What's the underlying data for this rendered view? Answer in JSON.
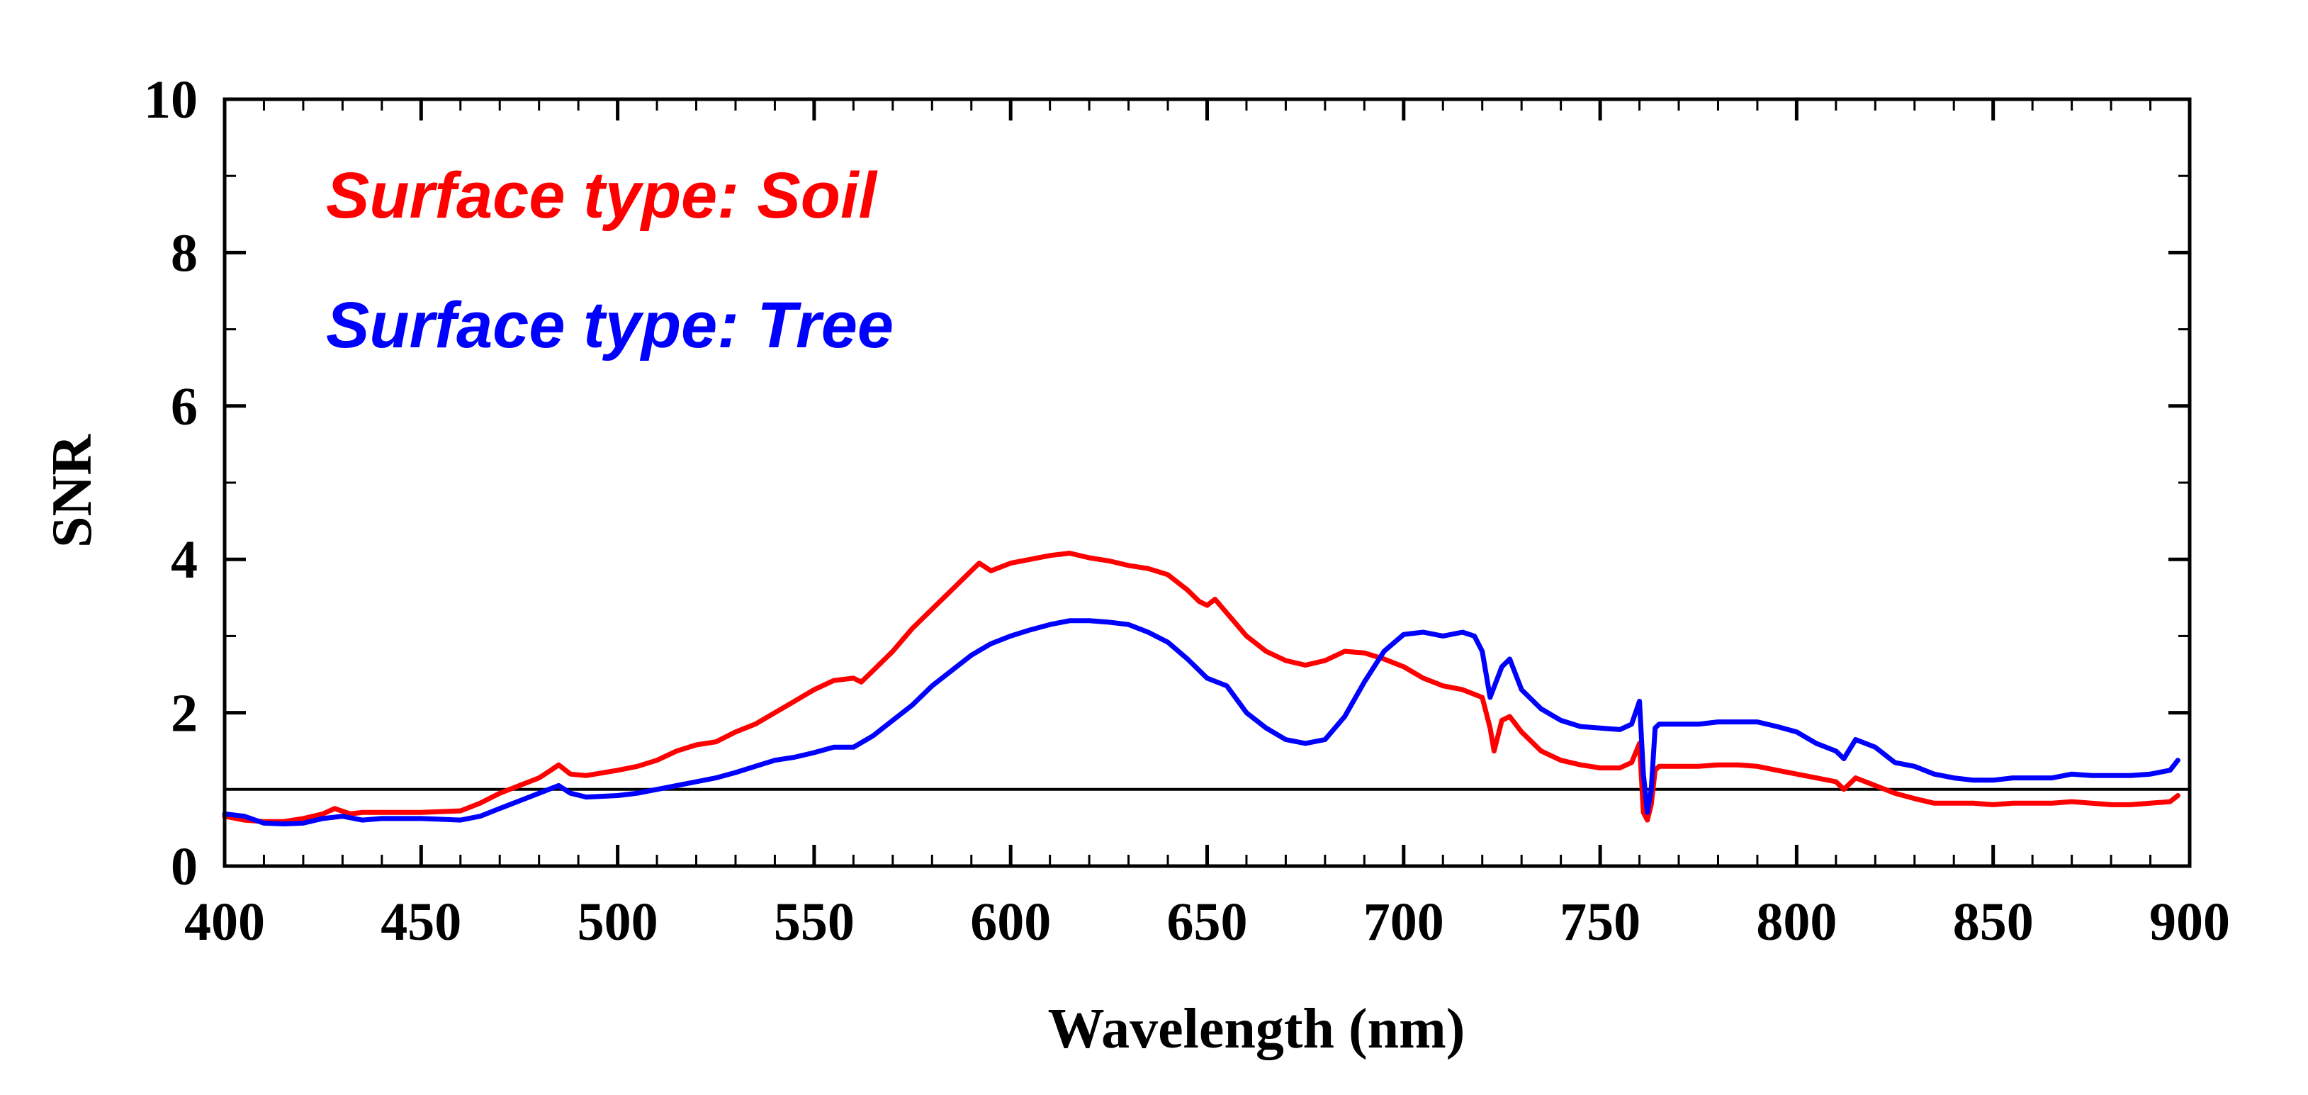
{
  "chart_data": {
    "type": "line",
    "title": "",
    "xlabel": "Wavelength (nm)",
    "ylabel": "SNR",
    "xlim": [
      400,
      900
    ],
    "ylim": [
      0,
      10
    ],
    "x_ticks": [
      400,
      450,
      500,
      550,
      600,
      650,
      700,
      750,
      800,
      850,
      900
    ],
    "y_ticks": [
      0,
      2,
      4,
      6,
      8,
      10
    ],
    "x_minor_step": 10,
    "y_minor_step": 1,
    "grid": false,
    "legend_position": "top-left",
    "reference_line": {
      "y": 1.0,
      "color": "#000000"
    },
    "series": [
      {
        "name": "Surface type: Soil",
        "color": "#ff0000",
        "x": [
          400,
          405,
          410,
          415,
          420,
          425,
          428,
          432,
          435,
          440,
          450,
          460,
          465,
          470,
          475,
          480,
          483,
          485,
          488,
          492,
          500,
          505,
          510,
          515,
          520,
          525,
          530,
          535,
          540,
          545,
          550,
          555,
          560,
          562,
          565,
          570,
          575,
          580,
          585,
          590,
          592,
          595,
          600,
          605,
          610,
          615,
          620,
          625,
          630,
          635,
          640,
          645,
          648,
          650,
          652,
          655,
          660,
          665,
          670,
          675,
          680,
          685,
          690,
          695,
          700,
          705,
          710,
          715,
          720,
          722,
          723,
          725,
          727,
          730,
          735,
          740,
          745,
          750,
          755,
          758,
          760,
          761,
          762,
          763,
          764,
          765,
          770,
          775,
          780,
          785,
          790,
          795,
          800,
          805,
          810,
          812,
          815,
          820,
          825,
          830,
          835,
          840,
          845,
          850,
          855,
          860,
          865,
          870,
          875,
          880,
          885,
          890,
          895,
          897
        ],
        "y": [
          0.65,
          0.6,
          0.58,
          0.58,
          0.62,
          0.68,
          0.75,
          0.68,
          0.7,
          0.7,
          0.7,
          0.72,
          0.82,
          0.95,
          1.05,
          1.15,
          1.25,
          1.32,
          1.2,
          1.18,
          1.25,
          1.3,
          1.38,
          1.5,
          1.58,
          1.62,
          1.75,
          1.85,
          2.0,
          2.15,
          2.3,
          2.42,
          2.45,
          2.4,
          2.55,
          2.8,
          3.1,
          3.35,
          3.6,
          3.85,
          3.95,
          3.85,
          3.95,
          4.0,
          4.05,
          4.08,
          4.02,
          3.98,
          3.92,
          3.88,
          3.8,
          3.6,
          3.45,
          3.4,
          3.48,
          3.3,
          3.0,
          2.8,
          2.68,
          2.62,
          2.68,
          2.8,
          2.78,
          2.7,
          2.6,
          2.45,
          2.35,
          2.3,
          2.2,
          1.8,
          1.5,
          1.9,
          1.95,
          1.75,
          1.5,
          1.38,
          1.32,
          1.28,
          1.28,
          1.35,
          1.6,
          0.7,
          0.6,
          0.8,
          1.25,
          1.3,
          1.3,
          1.3,
          1.32,
          1.32,
          1.3,
          1.25,
          1.2,
          1.15,
          1.1,
          1.0,
          1.15,
          1.05,
          0.95,
          0.88,
          0.82,
          0.82,
          0.82,
          0.8,
          0.82,
          0.82,
          0.82,
          0.84,
          0.82,
          0.8,
          0.8,
          0.82,
          0.84,
          0.92
        ]
      },
      {
        "name": "Surface type: Tree",
        "color": "#0000ff",
        "x": [
          400,
          405,
          410,
          415,
          420,
          425,
          430,
          435,
          440,
          450,
          460,
          465,
          470,
          475,
          480,
          485,
          488,
          492,
          500,
          505,
          510,
          515,
          520,
          525,
          530,
          535,
          540,
          545,
          550,
          555,
          560,
          565,
          570,
          575,
          580,
          585,
          590,
          595,
          600,
          605,
          610,
          615,
          620,
          625,
          630,
          635,
          640,
          645,
          650,
          655,
          660,
          665,
          670,
          675,
          680,
          685,
          690,
          695,
          700,
          705,
          710,
          715,
          718,
          720,
          722,
          725,
          727,
          730,
          735,
          740,
          745,
          750,
          755,
          758,
          760,
          761,
          762,
          763,
          764,
          765,
          770,
          775,
          780,
          785,
          790,
          795,
          800,
          805,
          810,
          812,
          815,
          820,
          825,
          830,
          835,
          840,
          845,
          850,
          855,
          860,
          865,
          870,
          875,
          880,
          885,
          890,
          895,
          897
        ],
        "y": [
          0.68,
          0.65,
          0.56,
          0.55,
          0.56,
          0.62,
          0.65,
          0.6,
          0.62,
          0.62,
          0.6,
          0.65,
          0.75,
          0.85,
          0.95,
          1.05,
          0.95,
          0.9,
          0.92,
          0.95,
          1.0,
          1.05,
          1.1,
          1.15,
          1.22,
          1.3,
          1.38,
          1.42,
          1.48,
          1.55,
          1.55,
          1.7,
          1.9,
          2.1,
          2.35,
          2.55,
          2.75,
          2.9,
          3.0,
          3.08,
          3.15,
          3.2,
          3.2,
          3.18,
          3.15,
          3.05,
          2.92,
          2.7,
          2.45,
          2.35,
          2.0,
          1.8,
          1.65,
          1.6,
          1.65,
          1.95,
          2.4,
          2.8,
          3.02,
          3.05,
          3.0,
          3.05,
          3.0,
          2.8,
          2.2,
          2.6,
          2.7,
          2.3,
          2.05,
          1.9,
          1.82,
          1.8,
          1.78,
          1.85,
          2.15,
          1.2,
          0.7,
          1.0,
          1.8,
          1.85,
          1.85,
          1.85,
          1.88,
          1.88,
          1.88,
          1.82,
          1.75,
          1.6,
          1.5,
          1.4,
          1.65,
          1.55,
          1.35,
          1.3,
          1.2,
          1.15,
          1.12,
          1.12,
          1.15,
          1.15,
          1.15,
          1.2,
          1.18,
          1.18,
          1.18,
          1.2,
          1.25,
          1.38
        ]
      }
    ]
  }
}
